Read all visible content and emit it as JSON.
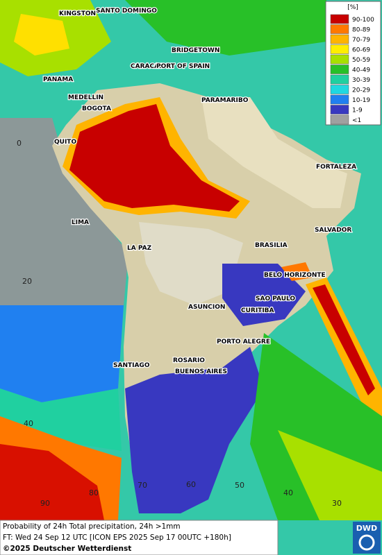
{
  "legend": {
    "title": "[%]",
    "items": [
      {
        "label": "90-100",
        "color": "#c80000"
      },
      {
        "label": "80-89",
        "color": "#ff7800"
      },
      {
        "label": "70-79",
        "color": "#ffb400"
      },
      {
        "label": "60-69",
        "color": "#ffee00"
      },
      {
        "label": "50-59",
        "color": "#a8e000"
      },
      {
        "label": "40-49",
        "color": "#28c028"
      },
      {
        "label": "30-39",
        "color": "#20d0a0"
      },
      {
        "label": "20-29",
        "color": "#20d8e0"
      },
      {
        "label": "10-19",
        "color": "#2080f0"
      },
      {
        "label": "1-9",
        "color": "#3838c0"
      },
      {
        "label": "<1",
        "color": "#a0a0a0"
      }
    ]
  },
  "cities": [
    "KINGSTON",
    "SANTO DOMINGO",
    "BRIDGETOWN",
    "PANAMA",
    "CARACAS",
    "PORT OF SPAIN",
    "MEDELLIN",
    "BOGOTA",
    "PARAMARIBO",
    "QUITO",
    "FORTALEZA",
    "LIMA",
    "SALVADOR",
    "BRASILIA",
    "LA PAZ",
    "BELO HORIZONTE",
    "SAO PAULO",
    "ASUNCION",
    "CURITIBA",
    "PORTO ALEGRE",
    "SANTIAGO",
    "ROSARIO",
    "BUENOS AIRES"
  ],
  "grid_labels": [
    0,
    20,
    40,
    90,
    80,
    70,
    60,
    50,
    40,
    30
  ],
  "footer": {
    "line1": "Probability of 24h Total precipitation, 24h >1mm",
    "line2": "FT: Wed 24 Sep 12 UTC [ICON EPS 2025 Sep 17 00UTC +180h]",
    "copyright": "©2025 Deutscher Wetterdienst"
  },
  "logo": "DWD"
}
